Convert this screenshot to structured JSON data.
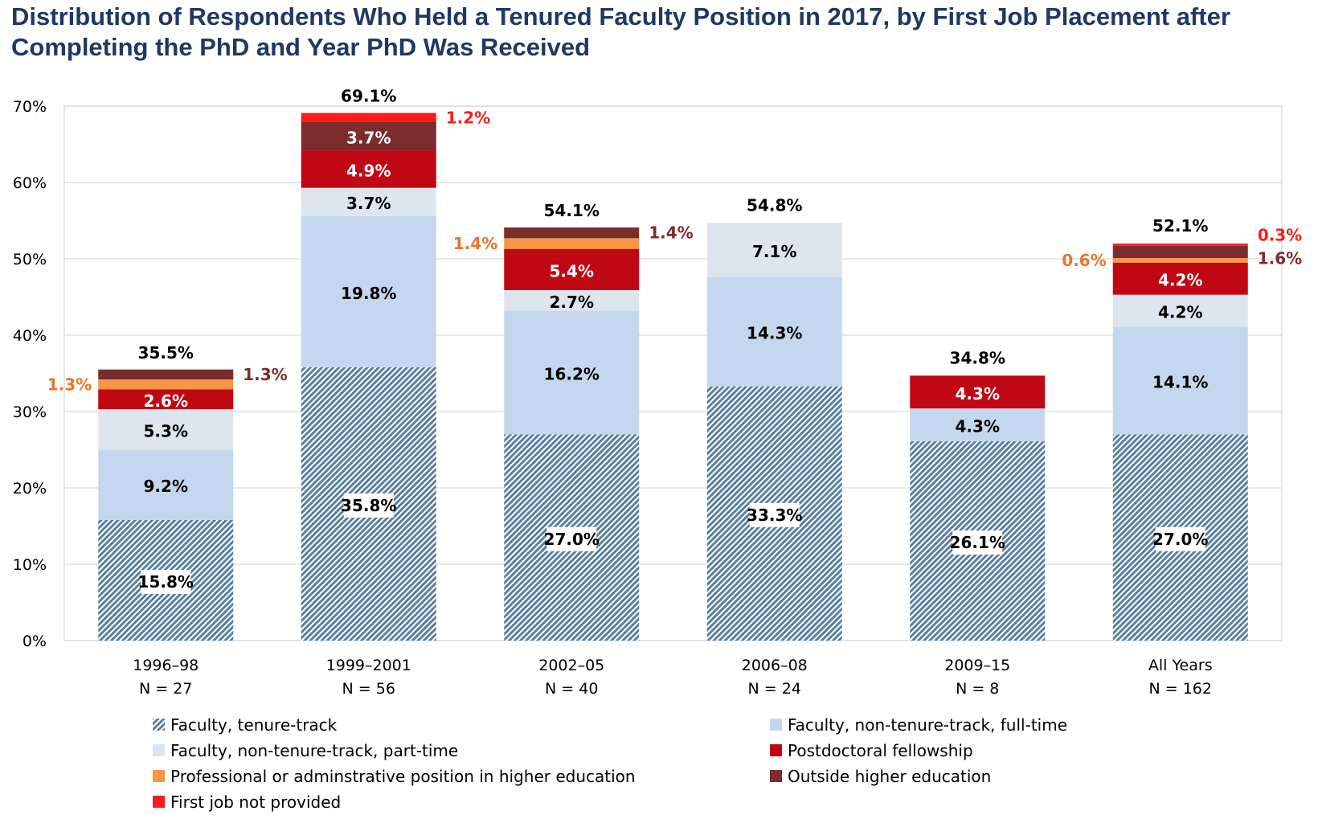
{
  "title": "Distribution of Respondents Who Held a Tenured Faculty Position in 2017, by First Job Placement after Completing the PhD and Year PhD Was Received",
  "chart_data": {
    "type": "bar",
    "stacked": true,
    "ylim": [
      0,
      70
    ],
    "yticks": [
      "0%",
      "10%",
      "20%",
      "30%",
      "40%",
      "50%",
      "60%",
      "70%"
    ],
    "grid": true,
    "legend_position": "bottom",
    "categories": [
      "1996–98",
      "1999–2001",
      "2002–05",
      "2006–08",
      "2009–15",
      "All Years"
    ],
    "n_labels": [
      "N = 27",
      "N = 56",
      "N = 40",
      "N = 24",
      "N = 8",
      "N = 162"
    ],
    "totals": [
      "35.5%",
      "69.1%",
      "54.1%",
      "54.8%",
      "34.8%",
      "52.1%"
    ],
    "total_values": [
      35.5,
      69.1,
      54.1,
      54.8,
      34.8,
      52.1
    ],
    "series": [
      {
        "name": "Faculty, tenure-track",
        "color": "#5b7f9e",
        "pattern": "hatch",
        "values": [
          15.8,
          35.8,
          27.0,
          33.3,
          26.1,
          27.0
        ],
        "labels": [
          "15.8%",
          "35.8%",
          "27.0%",
          "33.3%",
          "26.1%",
          "27.0%"
        ]
      },
      {
        "name": "Faculty, non-tenure-track, full-time",
        "color": "#c5d7ee",
        "values": [
          9.2,
          19.8,
          16.2,
          14.3,
          4.3,
          14.1
        ],
        "labels": [
          "9.2%",
          "19.8%",
          "16.2%",
          "14.3%",
          "4.3%",
          "14.1%"
        ]
      },
      {
        "name": "Faculty, non-tenure-track, part-time",
        "color": "#dde6ef",
        "values": [
          5.3,
          3.7,
          2.7,
          7.1,
          0,
          4.2
        ],
        "labels": [
          "5.3%",
          "3.7%",
          "2.7%",
          "7.1%",
          "",
          "4.2%"
        ]
      },
      {
        "name": "Postdoctoral fellowship",
        "color": "#c00814",
        "values": [
          2.6,
          4.9,
          5.4,
          0,
          4.3,
          4.2
        ],
        "labels": [
          "2.6%",
          "4.9%",
          "5.4%",
          "",
          "4.3%",
          "4.2%"
        ]
      },
      {
        "name": "Professional or adminstrative position in higher education",
        "color": "#f79646",
        "values": [
          1.3,
          0,
          1.4,
          0,
          0,
          0.6
        ],
        "labels": [
          "1.3%",
          "",
          "1.4%",
          "",
          "",
          "0.6%"
        ]
      },
      {
        "name": "Outside higher education",
        "color": "#7b2c2c",
        "values": [
          1.3,
          3.7,
          1.4,
          0,
          0,
          1.6
        ],
        "labels": [
          "1.3%",
          "3.7%",
          "1.4%",
          "",
          "",
          "1.6%"
        ]
      },
      {
        "name": "First job not provided",
        "color": "#ff1a1a",
        "values": [
          0,
          1.2,
          0,
          0,
          0,
          0.3
        ],
        "labels": [
          "",
          "1.2%",
          "",
          "",
          "",
          "0.3%"
        ]
      }
    ],
    "label_colors": {
      "orange": "#e8752a",
      "brown": "#7b2c2c",
      "red": "#ff1a1a"
    }
  }
}
